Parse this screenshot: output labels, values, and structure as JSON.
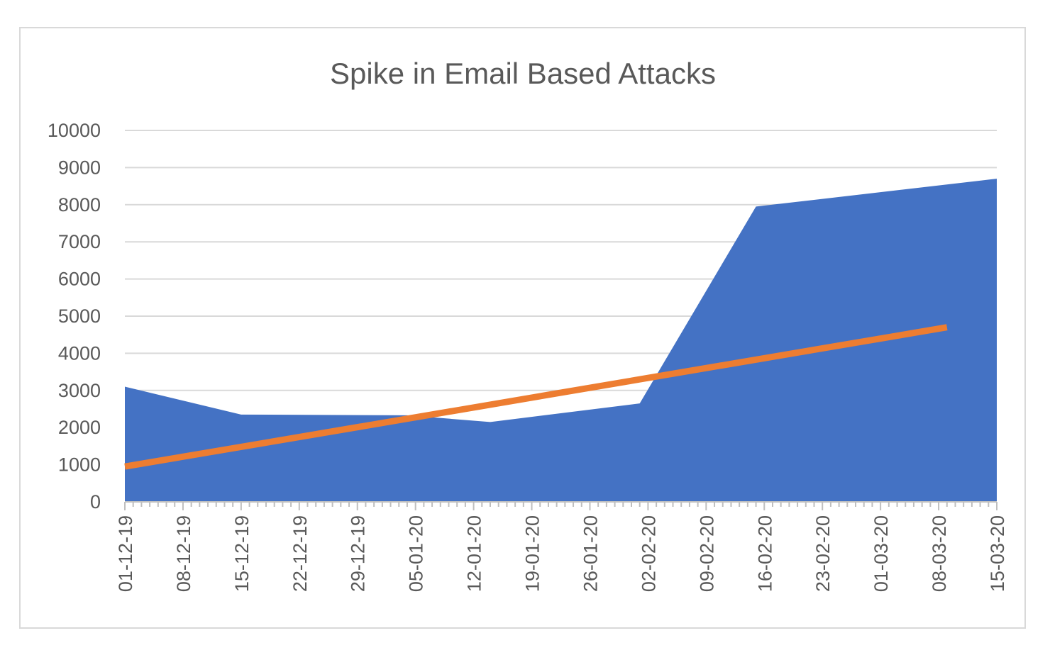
{
  "chart_data": {
    "type": "area",
    "title": "Spike in Email Based  Attacks",
    "xlabel": "",
    "ylabel": "",
    "ylim": [
      0,
      10000
    ],
    "y_ticks": [
      "0",
      "1000",
      "2000",
      "3000",
      "4000",
      "5000",
      "6000",
      "7000",
      "8000",
      "9000",
      "10000"
    ],
    "x_ticks": [
      "01-12-19",
      "08-12-19",
      "15-12-19",
      "22-12-19",
      "29-12-19",
      "05-01-20",
      "12-01-20",
      "19-01-20",
      "26-01-20",
      "02-02-20",
      "09-02-20",
      "16-02-20",
      "23-02-20",
      "01-03-20",
      "08-03-20",
      "15-03-20"
    ],
    "x_range": [
      "2019-12-01",
      "2020-03-15"
    ],
    "grid": true,
    "series": [
      {
        "type": "area",
        "color": "#4472c4",
        "points": [
          {
            "x": "2019-12-01",
            "y": 3100
          },
          {
            "x": "2019-12-15",
            "y": 2350
          },
          {
            "x": "2020-01-04",
            "y": 2330
          },
          {
            "x": "2020-01-14",
            "y": 2150
          },
          {
            "x": "2020-02-01",
            "y": 2650
          },
          {
            "x": "2020-02-15",
            "y": 7950
          },
          {
            "x": "2020-03-15",
            "y": 8700
          }
        ]
      },
      {
        "type": "line",
        "color": "#ed7d31",
        "points": [
          {
            "x": "2019-12-01",
            "y": 950
          },
          {
            "x": "2020-03-09",
            "y": 4700
          }
        ]
      }
    ]
  },
  "colors": {
    "frame_border": "#d9d9d9",
    "gridline": "#d9d9d9",
    "axis": "#bfbfbf",
    "text": "#595959"
  }
}
